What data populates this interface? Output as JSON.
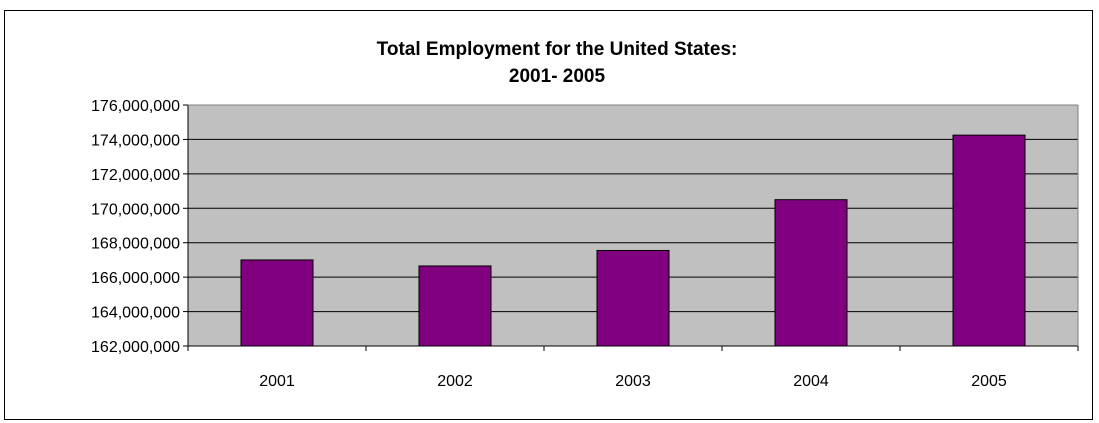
{
  "chart_data": {
    "type": "bar",
    "title_line1": "Total Employment for the United States:",
    "title_line2": "2001- 2005",
    "categories": [
      "2001",
      "2002",
      "2003",
      "2004",
      "2005"
    ],
    "series": [
      {
        "values": [
          167000000,
          166650000,
          167550000,
          170500000,
          174250000
        ]
      }
    ],
    "xlabel": "",
    "ylabel": "",
    "ylim": [
      162000000,
      176000000
    ],
    "yticks": [
      "162,000,000",
      "164,000,000",
      "166,000,000",
      "168,000,000",
      "170,000,000",
      "172,000,000",
      "174,000,000",
      "176,000,000"
    ],
    "grid": true,
    "legend": "none",
    "colors": {
      "bar": "#800080",
      "plot_area": "#c0c0c0",
      "gridline": "#000000"
    }
  }
}
